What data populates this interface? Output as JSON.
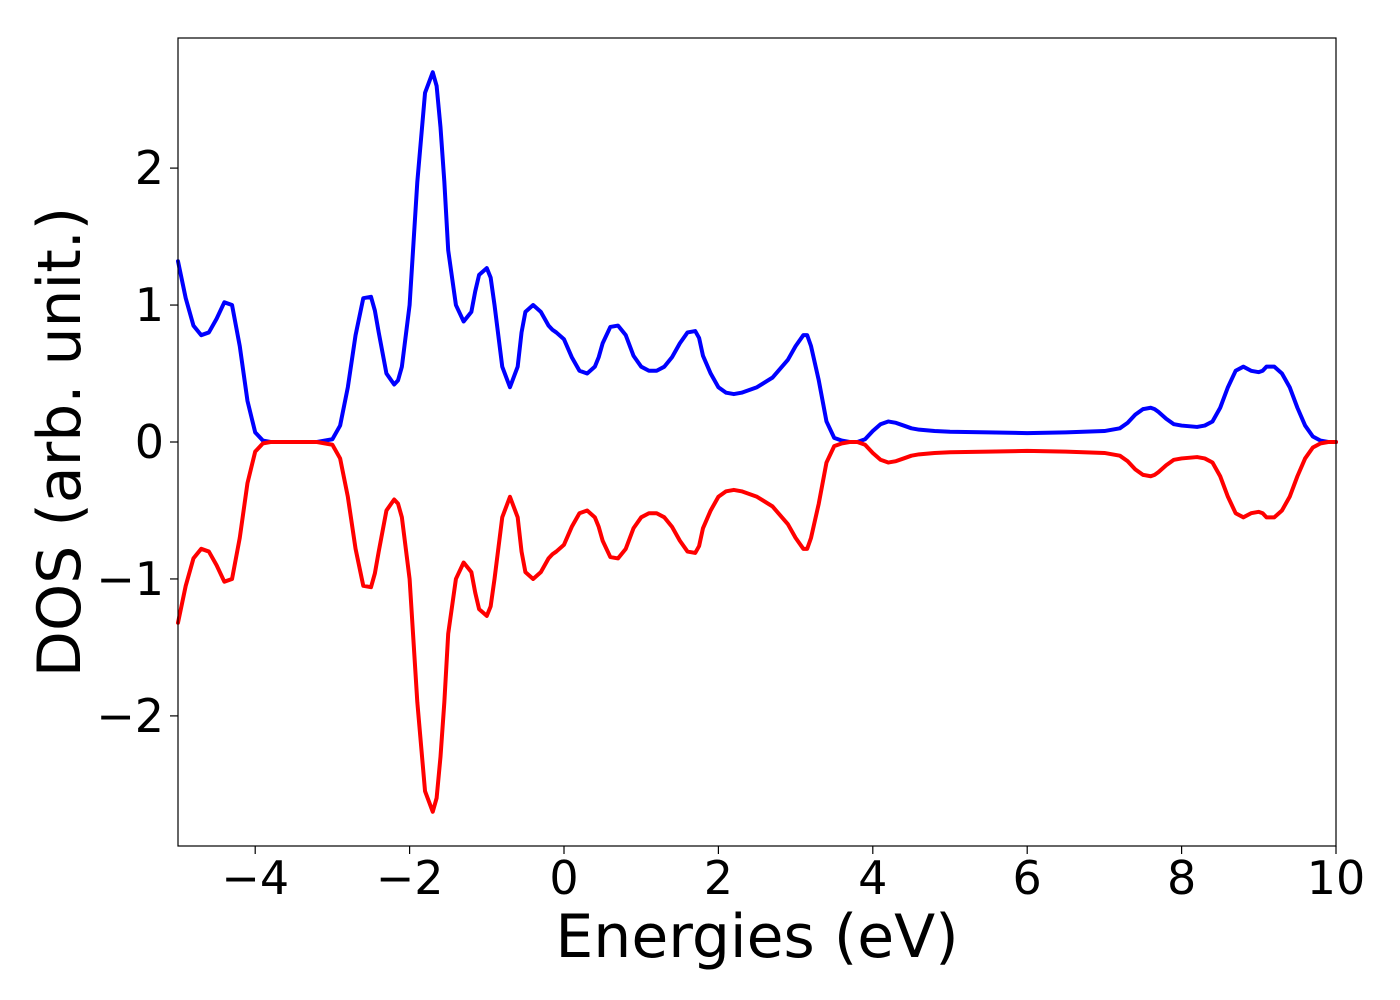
{
  "chart_data": {
    "type": "line",
    "title": "",
    "xlabel": "Energies (eV)",
    "ylabel": "DOS (arb. unit.)",
    "xlim": [
      -5,
      10
    ],
    "ylim": [
      -2.95,
      2.95
    ],
    "x_ticks": [
      -4,
      -2,
      0,
      2,
      4,
      6,
      8,
      10
    ],
    "x_tick_labels": [
      "−4",
      "−2",
      "0",
      "2",
      "4",
      "6",
      "8",
      "10"
    ],
    "y_ticks": [
      -2,
      -1,
      0,
      1,
      2
    ],
    "y_tick_labels": [
      "−2",
      "−1",
      "0",
      "1",
      "2"
    ],
    "grid": false,
    "legend": "none",
    "series": [
      {
        "color": "#0000ff",
        "x": [
          -5.0,
          -4.9,
          -4.8,
          -4.7,
          -4.6,
          -4.5,
          -4.4,
          -4.3,
          -4.2,
          -4.1,
          -4.0,
          -3.9,
          -3.8,
          -3.7,
          -3.5,
          -3.2,
          -3.0,
          -2.9,
          -2.8,
          -2.7,
          -2.6,
          -2.5,
          -2.45,
          -2.4,
          -2.3,
          -2.2,
          -2.15,
          -2.1,
          -2.0,
          -1.9,
          -1.8,
          -1.7,
          -1.65,
          -1.6,
          -1.55,
          -1.5,
          -1.4,
          -1.3,
          -1.2,
          -1.15,
          -1.1,
          -1.0,
          -0.95,
          -0.9,
          -0.8,
          -0.7,
          -0.6,
          -0.55,
          -0.5,
          -0.4,
          -0.3,
          -0.2,
          -0.15,
          -0.1,
          0.0,
          0.1,
          0.2,
          0.3,
          0.4,
          0.45,
          0.5,
          0.6,
          0.7,
          0.8,
          0.9,
          1.0,
          1.1,
          1.2,
          1.3,
          1.4,
          1.5,
          1.6,
          1.7,
          1.75,
          1.8,
          1.9,
          2.0,
          2.1,
          2.2,
          2.3,
          2.5,
          2.7,
          2.9,
          3.0,
          3.1,
          3.15,
          3.2,
          3.3,
          3.4,
          3.5,
          3.6,
          3.7,
          3.8,
          3.9,
          4.0,
          4.1,
          4.2,
          4.3,
          4.4,
          4.5,
          4.6,
          4.8,
          5.0,
          5.5,
          6.0,
          6.5,
          7.0,
          7.2,
          7.3,
          7.4,
          7.5,
          7.6,
          7.65,
          7.7,
          7.8,
          7.9,
          8.0,
          8.2,
          8.3,
          8.4,
          8.5,
          8.6,
          8.7,
          8.8,
          8.9,
          9.0,
          9.05,
          9.1,
          9.2,
          9.3,
          9.4,
          9.5,
          9.6,
          9.7,
          9.8,
          9.9,
          10.0
        ],
        "y": [
          1.32,
          1.05,
          0.85,
          0.78,
          0.8,
          0.9,
          1.02,
          1.0,
          0.7,
          0.3,
          0.07,
          0.01,
          0.0,
          0.0,
          0.0,
          0.0,
          0.02,
          0.12,
          0.4,
          0.78,
          1.05,
          1.06,
          0.96,
          0.8,
          0.5,
          0.42,
          0.45,
          0.55,
          1.0,
          1.9,
          2.55,
          2.7,
          2.6,
          2.3,
          1.9,
          1.4,
          1.0,
          0.88,
          0.95,
          1.1,
          1.22,
          1.27,
          1.2,
          1.0,
          0.55,
          0.4,
          0.55,
          0.8,
          0.95,
          1.0,
          0.95,
          0.85,
          0.82,
          0.8,
          0.75,
          0.62,
          0.52,
          0.5,
          0.55,
          0.62,
          0.72,
          0.84,
          0.85,
          0.78,
          0.63,
          0.55,
          0.52,
          0.52,
          0.55,
          0.62,
          0.72,
          0.8,
          0.81,
          0.76,
          0.63,
          0.5,
          0.4,
          0.36,
          0.35,
          0.36,
          0.4,
          0.47,
          0.6,
          0.7,
          0.78,
          0.78,
          0.7,
          0.45,
          0.15,
          0.03,
          0.01,
          0.0,
          0.0,
          0.02,
          0.08,
          0.13,
          0.15,
          0.14,
          0.12,
          0.1,
          0.09,
          0.08,
          0.075,
          0.07,
          0.065,
          0.07,
          0.08,
          0.1,
          0.14,
          0.2,
          0.24,
          0.25,
          0.24,
          0.22,
          0.17,
          0.13,
          0.12,
          0.11,
          0.12,
          0.15,
          0.25,
          0.4,
          0.52,
          0.55,
          0.52,
          0.51,
          0.52,
          0.55,
          0.55,
          0.5,
          0.4,
          0.25,
          0.12,
          0.04,
          0.01,
          0.0,
          0.0
        ]
      },
      {
        "color": "#ff0000",
        "x": [
          -5.0,
          -4.9,
          -4.8,
          -4.7,
          -4.6,
          -4.5,
          -4.4,
          -4.3,
          -4.2,
          -4.1,
          -4.0,
          -3.9,
          -3.8,
          -3.7,
          -3.5,
          -3.2,
          -3.0,
          -2.9,
          -2.8,
          -2.7,
          -2.6,
          -2.5,
          -2.45,
          -2.4,
          -2.3,
          -2.2,
          -2.15,
          -2.1,
          -2.0,
          -1.9,
          -1.8,
          -1.7,
          -1.65,
          -1.6,
          -1.55,
          -1.5,
          -1.4,
          -1.3,
          -1.2,
          -1.15,
          -1.1,
          -1.0,
          -0.95,
          -0.9,
          -0.8,
          -0.7,
          -0.6,
          -0.55,
          -0.5,
          -0.4,
          -0.3,
          -0.2,
          -0.15,
          -0.1,
          0.0,
          0.1,
          0.2,
          0.3,
          0.4,
          0.45,
          0.5,
          0.6,
          0.7,
          0.8,
          0.9,
          1.0,
          1.1,
          1.2,
          1.3,
          1.4,
          1.5,
          1.6,
          1.7,
          1.75,
          1.8,
          1.9,
          2.0,
          2.1,
          2.2,
          2.3,
          2.5,
          2.7,
          2.9,
          3.0,
          3.1,
          3.15,
          3.2,
          3.3,
          3.4,
          3.5,
          3.6,
          3.7,
          3.8,
          3.9,
          4.0,
          4.1,
          4.2,
          4.3,
          4.4,
          4.5,
          4.6,
          4.8,
          5.0,
          5.5,
          6.0,
          6.5,
          7.0,
          7.2,
          7.3,
          7.4,
          7.5,
          7.6,
          7.65,
          7.7,
          7.8,
          7.9,
          8.0,
          8.2,
          8.3,
          8.4,
          8.5,
          8.6,
          8.7,
          8.8,
          8.9,
          9.0,
          9.05,
          9.1,
          9.2,
          9.3,
          9.4,
          9.5,
          9.6,
          9.7,
          9.8,
          9.9,
          10.0
        ],
        "y": [
          -1.32,
          -1.05,
          -0.85,
          -0.78,
          -0.8,
          -0.9,
          -1.02,
          -1.0,
          -0.7,
          -0.3,
          -0.07,
          -0.01,
          -0.0,
          -0.0,
          -0.0,
          -0.0,
          -0.02,
          -0.12,
          -0.4,
          -0.78,
          -1.05,
          -1.06,
          -0.96,
          -0.8,
          -0.5,
          -0.42,
          -0.45,
          -0.55,
          -1.0,
          -1.9,
          -2.55,
          -2.7,
          -2.6,
          -2.3,
          -1.9,
          -1.4,
          -1.0,
          -0.88,
          -0.95,
          -1.1,
          -1.22,
          -1.27,
          -1.2,
          -1.0,
          -0.55,
          -0.4,
          -0.55,
          -0.8,
          -0.95,
          -1.0,
          -0.95,
          -0.85,
          -0.82,
          -0.8,
          -0.75,
          -0.62,
          -0.52,
          -0.5,
          -0.55,
          -0.62,
          -0.72,
          -0.84,
          -0.85,
          -0.78,
          -0.63,
          -0.55,
          -0.52,
          -0.52,
          -0.55,
          -0.62,
          -0.72,
          -0.8,
          -0.81,
          -0.76,
          -0.63,
          -0.5,
          -0.4,
          -0.36,
          -0.35,
          -0.36,
          -0.4,
          -0.47,
          -0.6,
          -0.7,
          -0.78,
          -0.78,
          -0.7,
          -0.45,
          -0.15,
          -0.03,
          -0.01,
          -0.0,
          -0.0,
          -0.02,
          -0.08,
          -0.13,
          -0.15,
          -0.14,
          -0.12,
          -0.1,
          -0.09,
          -0.08,
          -0.075,
          -0.07,
          -0.065,
          -0.07,
          -0.08,
          -0.1,
          -0.14,
          -0.2,
          -0.24,
          -0.25,
          -0.24,
          -0.22,
          -0.17,
          -0.13,
          -0.12,
          -0.11,
          -0.12,
          -0.15,
          -0.25,
          -0.4,
          -0.52,
          -0.55,
          -0.52,
          -0.51,
          -0.52,
          -0.55,
          -0.55,
          -0.5,
          -0.4,
          -0.25,
          -0.12,
          -0.04,
          -0.01,
          -0.0,
          -0.0
        ]
      }
    ]
  }
}
